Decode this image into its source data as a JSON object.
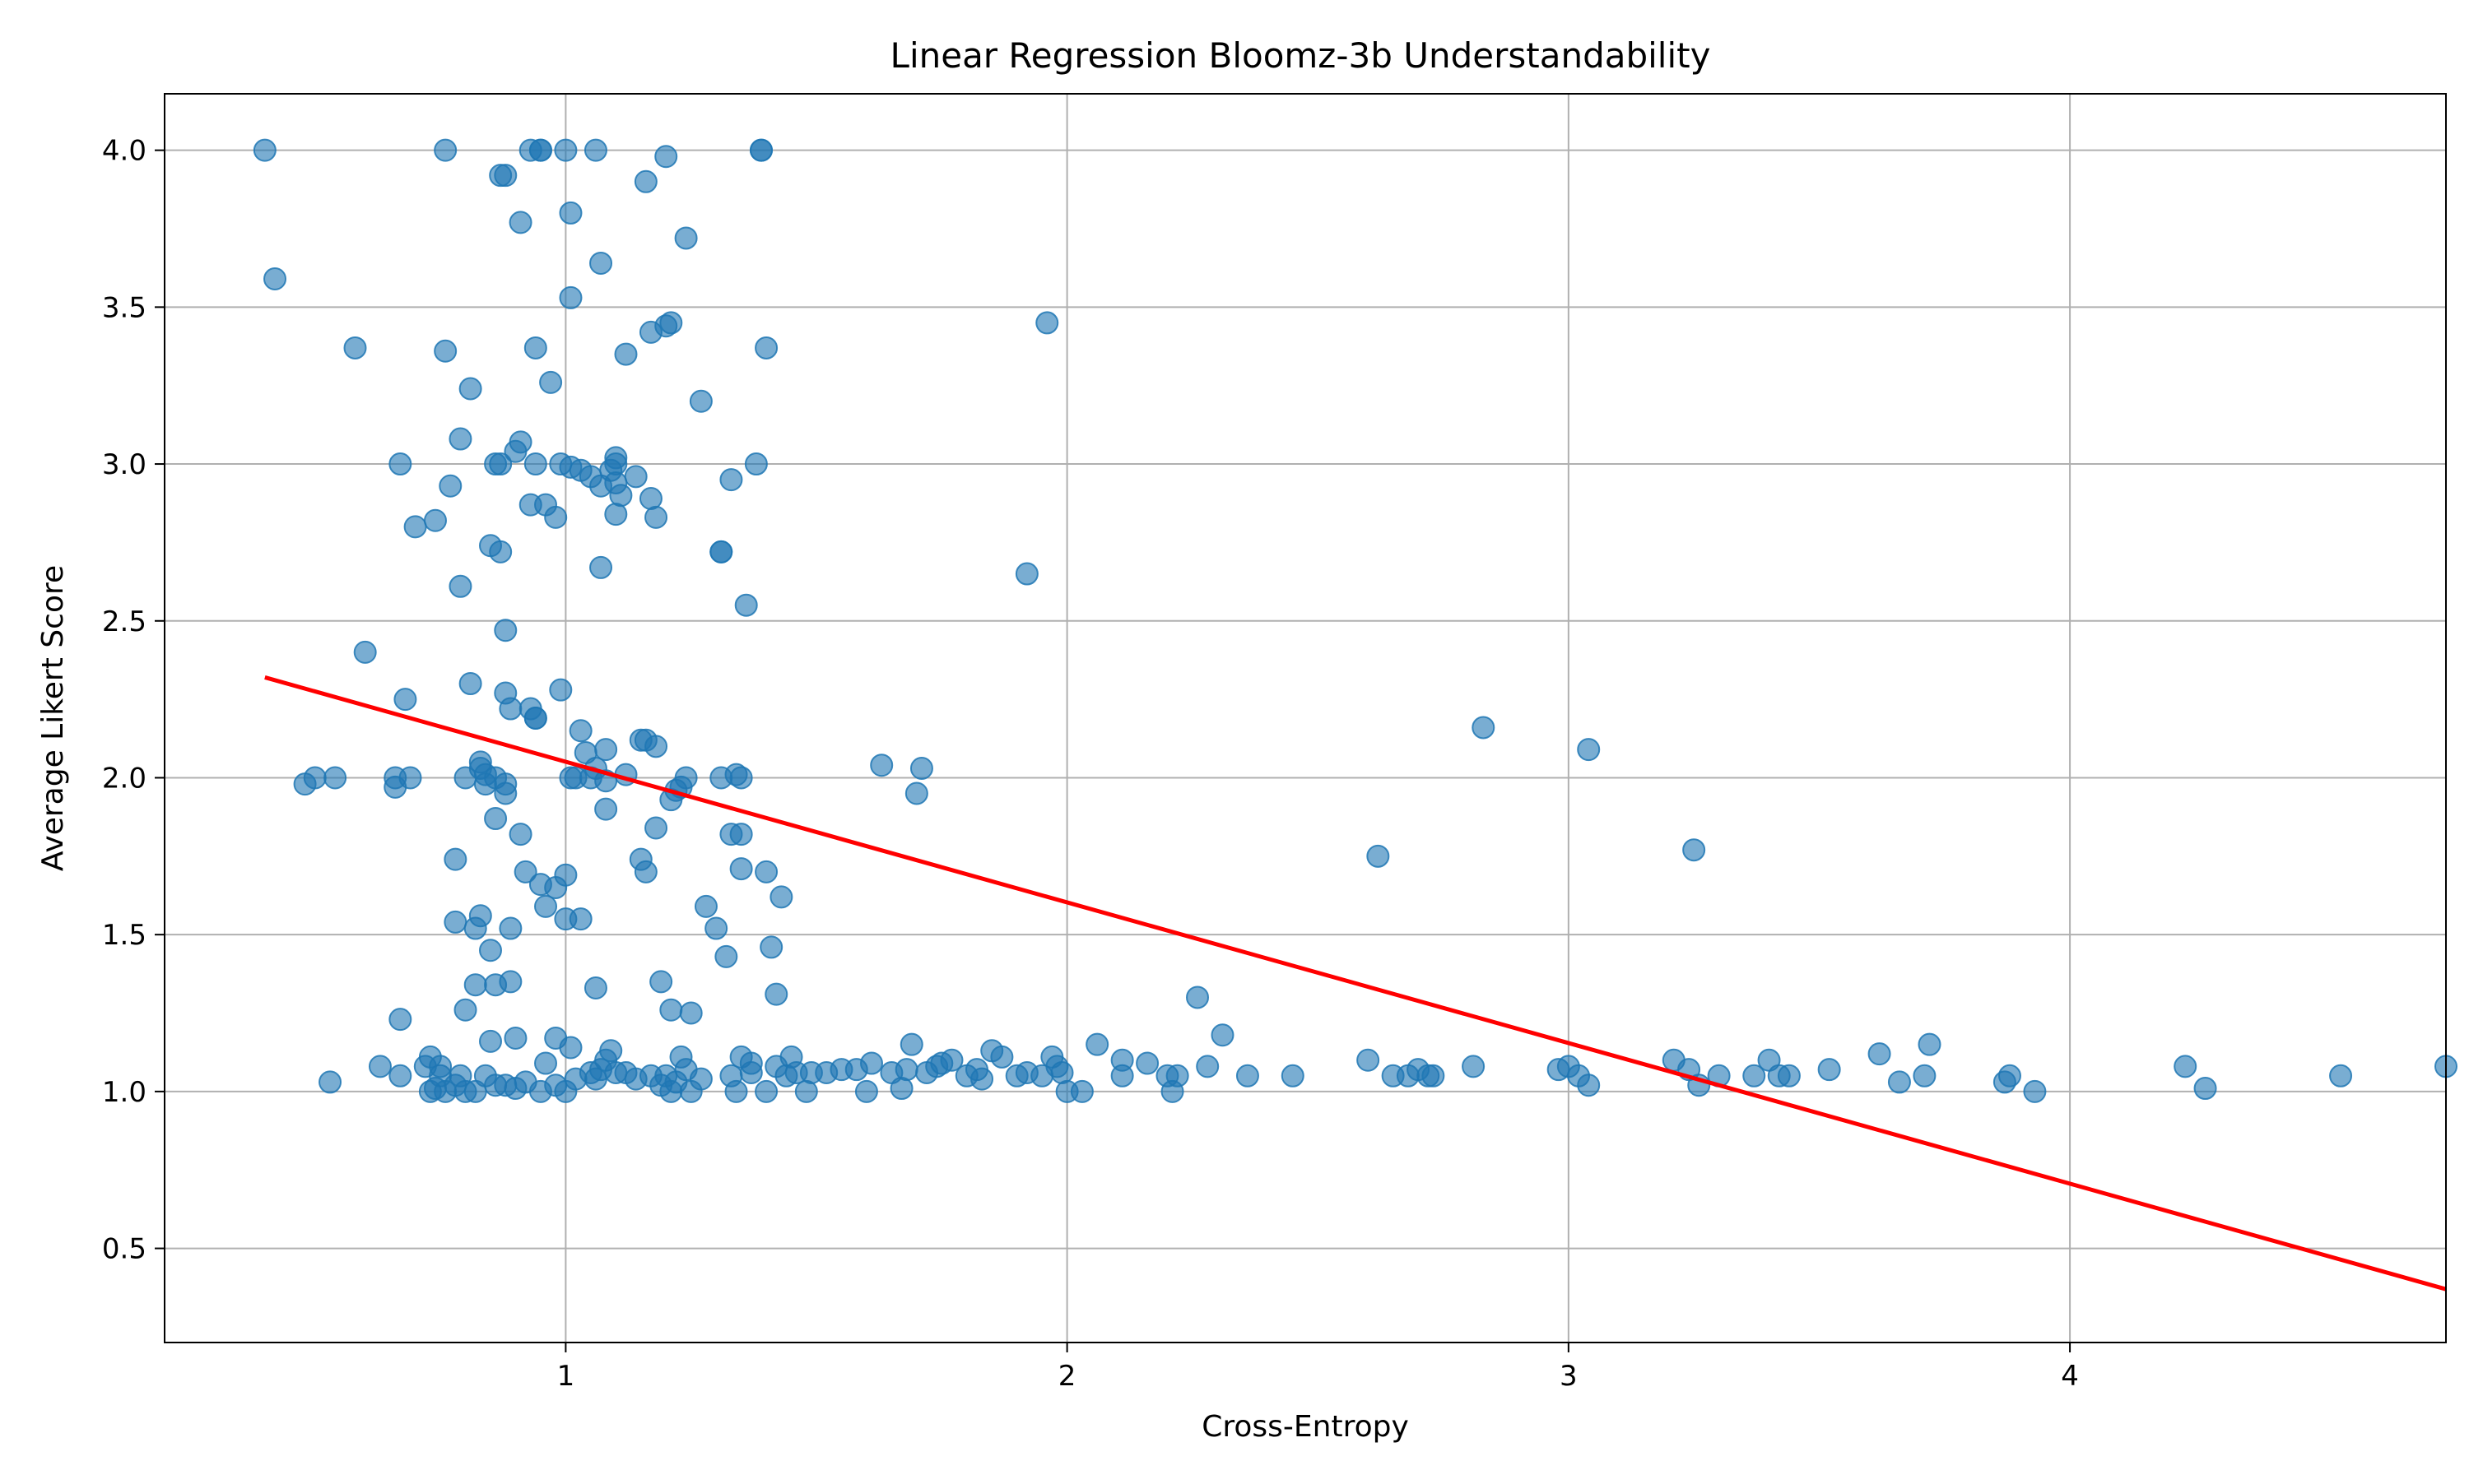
{
  "chart_data": {
    "type": "scatter",
    "title": "Linear Regression Bloomz-3b Understandability",
    "xlabel": "Cross-Entropy",
    "ylabel": "Average Likert Score",
    "xlim": [
      0.2,
      4.75
    ],
    "ylim": [
      0.2,
      4.18
    ],
    "x_ticks": [
      1,
      2,
      3,
      4
    ],
    "x_tick_labels": [
      "1",
      "2",
      "3",
      "4"
    ],
    "y_ticks": [
      0.5,
      1.0,
      1.5,
      2.0,
      2.5,
      3.0,
      3.5,
      4.0
    ],
    "y_tick_labels": [
      "0.5",
      "1.0",
      "1.5",
      "2.0",
      "2.5",
      "3.0",
      "3.5",
      "4.0"
    ],
    "grid": true,
    "colors": {
      "points": "#1f77b4",
      "regression_line": "#ff0000",
      "grid": "#b0b0b0"
    },
    "series": [
      {
        "kind": "scatter",
        "points": [
          [
            0.4,
            4.0
          ],
          [
            0.42,
            3.59
          ],
          [
            0.48,
            1.98
          ],
          [
            0.5,
            2.0
          ],
          [
            0.54,
            2.0
          ],
          [
            0.53,
            1.03
          ],
          [
            0.58,
            3.37
          ],
          [
            0.6,
            2.4
          ],
          [
            0.63,
            1.08
          ],
          [
            0.66,
            2.0
          ],
          [
            0.66,
            1.97
          ],
          [
            0.67,
            3.0
          ],
          [
            0.67,
            1.05
          ],
          [
            0.67,
            1.23
          ],
          [
            0.68,
            2.25
          ],
          [
            0.69,
            2.0
          ],
          [
            0.7,
            2.8
          ],
          [
            0.74,
            2.82
          ],
          [
            0.76,
            4.0
          ],
          [
            0.76,
            3.36
          ],
          [
            0.77,
            2.93
          ],
          [
            0.78,
            1.74
          ],
          [
            0.78,
            1.54
          ],
          [
            0.79,
            3.08
          ],
          [
            0.79,
            2.61
          ],
          [
            0.8,
            2.0
          ],
          [
            0.8,
            1.26
          ],
          [
            0.81,
            3.24
          ],
          [
            0.81,
            2.3
          ],
          [
            0.82,
            1.34
          ],
          [
            0.82,
            1.52
          ],
          [
            0.83,
            1.56
          ],
          [
            0.83,
            2.05
          ],
          [
            0.83,
            2.03
          ],
          [
            0.84,
            1.98
          ],
          [
            0.84,
            2.01
          ],
          [
            0.85,
            2.74
          ],
          [
            0.85,
            1.45
          ],
          [
            0.85,
            1.16
          ],
          [
            0.86,
            1.87
          ],
          [
            0.86,
            1.34
          ],
          [
            0.86,
            2.0
          ],
          [
            0.86,
            3.0
          ],
          [
            0.87,
            3.92
          ],
          [
            0.87,
            3.0
          ],
          [
            0.87,
            2.72
          ],
          [
            0.88,
            3.92
          ],
          [
            0.88,
            2.47
          ],
          [
            0.88,
            2.27
          ],
          [
            0.88,
            1.95
          ],
          [
            0.88,
            1.98
          ],
          [
            0.89,
            2.22
          ],
          [
            0.89,
            1.52
          ],
          [
            0.89,
            1.35
          ],
          [
            0.9,
            1.17
          ],
          [
            0.9,
            3.04
          ],
          [
            0.91,
            3.77
          ],
          [
            0.91,
            3.07
          ],
          [
            0.91,
            1.82
          ],
          [
            0.92,
            1.7
          ],
          [
            0.93,
            4.0
          ],
          [
            0.93,
            2.87
          ],
          [
            0.93,
            2.22
          ],
          [
            0.94,
            3.37
          ],
          [
            0.94,
            3.0
          ],
          [
            0.94,
            2.19
          ],
          [
            0.94,
            2.19
          ],
          [
            0.95,
            4.0
          ],
          [
            0.95,
            4.0
          ],
          [
            0.95,
            1.66
          ],
          [
            0.96,
            1.59
          ],
          [
            0.96,
            2.87
          ],
          [
            0.97,
            3.26
          ],
          [
            0.98,
            2.83
          ],
          [
            0.98,
            1.17
          ],
          [
            0.98,
            1.65
          ],
          [
            0.99,
            3.0
          ],
          [
            0.99,
            2.28
          ],
          [
            1.0,
            1.69
          ],
          [
            1.0,
            1.55
          ],
          [
            1.01,
            2.99
          ],
          [
            1.01,
            2.0
          ],
          [
            1.01,
            1.14
          ],
          [
            1.0,
            4.0
          ],
          [
            1.01,
            3.53
          ],
          [
            1.01,
            3.8
          ],
          [
            1.02,
            2.0
          ],
          [
            1.03,
            2.15
          ],
          [
            1.03,
            2.98
          ],
          [
            1.03,
            1.55
          ],
          [
            1.04,
            2.08
          ],
          [
            1.05,
            2.96
          ],
          [
            1.05,
            2.0
          ],
          [
            1.06,
            2.03
          ],
          [
            1.06,
            1.33
          ],
          [
            1.06,
            4.0
          ],
          [
            1.07,
            3.64
          ],
          [
            1.07,
            2.93
          ],
          [
            1.07,
            2.67
          ],
          [
            1.08,
            2.09
          ],
          [
            1.08,
            1.99
          ],
          [
            1.08,
            1.9
          ],
          [
            1.09,
            2.98
          ],
          [
            1.1,
            3.02
          ],
          [
            1.1,
            3.0
          ],
          [
            1.1,
            2.94
          ],
          [
            1.1,
            2.84
          ],
          [
            1.11,
            2.9
          ],
          [
            1.12,
            3.35
          ],
          [
            1.12,
            2.01
          ],
          [
            1.14,
            2.96
          ],
          [
            1.15,
            1.74
          ],
          [
            1.15,
            2.12
          ],
          [
            1.16,
            2.12
          ],
          [
            1.16,
            1.7
          ],
          [
            1.16,
            3.9
          ],
          [
            1.17,
            3.42
          ],
          [
            1.17,
            2.89
          ],
          [
            1.18,
            2.83
          ],
          [
            1.18,
            2.1
          ],
          [
            1.18,
            1.84
          ],
          [
            1.19,
            1.35
          ],
          [
            1.2,
            3.98
          ],
          [
            1.2,
            3.44
          ],
          [
            1.21,
            3.45
          ],
          [
            1.21,
            1.26
          ],
          [
            1.21,
            1.93
          ],
          [
            1.22,
            1.96
          ],
          [
            1.23,
            1.97
          ],
          [
            1.24,
            3.72
          ],
          [
            1.24,
            2.0
          ],
          [
            1.25,
            1.25
          ],
          [
            1.27,
            3.2
          ],
          [
            1.28,
            1.59
          ],
          [
            1.3,
            1.52
          ],
          [
            1.31,
            2.0
          ],
          [
            1.31,
            2.72
          ],
          [
            1.31,
            2.72
          ],
          [
            1.32,
            1.43
          ],
          [
            1.33,
            2.95
          ],
          [
            1.33,
            1.82
          ],
          [
            1.34,
            2.01
          ],
          [
            1.35,
            2.0
          ],
          [
            1.35,
            1.82
          ],
          [
            1.35,
            1.71
          ],
          [
            1.36,
            2.55
          ],
          [
            1.38,
            3.0
          ],
          [
            1.39,
            4.0
          ],
          [
            1.39,
            4.0
          ],
          [
            1.4,
            3.37
          ],
          [
            1.4,
            1.7
          ],
          [
            1.41,
            1.46
          ],
          [
            1.42,
            1.31
          ],
          [
            1.43,
            1.62
          ],
          [
            1.63,
            2.04
          ],
          [
            1.7,
            1.95
          ],
          [
            1.71,
            2.03
          ],
          [
            1.96,
            3.45
          ],
          [
            1.92,
            2.65
          ],
          [
            2.26,
            1.3
          ],
          [
            2.31,
            1.18
          ],
          [
            2.62,
            1.75
          ],
          [
            2.83,
            2.16
          ],
          [
            3.04,
            2.09
          ],
          [
            3.25,
            1.77
          ],
          [
            0.72,
            1.08
          ],
          [
            0.73,
            1.0
          ],
          [
            0.73,
            1.11
          ],
          [
            0.74,
            1.01
          ],
          [
            0.75,
            1.05
          ],
          [
            0.75,
            1.08
          ],
          [
            0.76,
            1.0
          ],
          [
            0.78,
            1.02
          ],
          [
            0.79,
            1.05
          ],
          [
            0.8,
            1.0
          ],
          [
            0.82,
            1.0
          ],
          [
            0.84,
            1.05
          ],
          [
            0.86,
            1.02
          ],
          [
            0.88,
            1.02
          ],
          [
            0.9,
            1.01
          ],
          [
            0.92,
            1.03
          ],
          [
            0.95,
            1.0
          ],
          [
            0.96,
            1.09
          ],
          [
            0.98,
            1.02
          ],
          [
            1.0,
            1.0
          ],
          [
            1.02,
            1.04
          ],
          [
            1.05,
            1.06
          ],
          [
            1.06,
            1.04
          ],
          [
            1.07,
            1.07
          ],
          [
            1.08,
            1.1
          ],
          [
            1.09,
            1.13
          ],
          [
            1.1,
            1.06
          ],
          [
            1.12,
            1.06
          ],
          [
            1.14,
            1.04
          ],
          [
            1.17,
            1.05
          ],
          [
            1.19,
            1.02
          ],
          [
            1.2,
            1.05
          ],
          [
            1.21,
            1.0
          ],
          [
            1.22,
            1.03
          ],
          [
            1.23,
            1.11
          ],
          [
            1.24,
            1.07
          ],
          [
            1.25,
            1.0
          ],
          [
            1.27,
            1.04
          ],
          [
            1.33,
            1.05
          ],
          [
            1.34,
            1.0
          ],
          [
            1.35,
            1.11
          ],
          [
            1.37,
            1.06
          ],
          [
            1.37,
            1.09
          ],
          [
            1.4,
            1.0
          ],
          [
            1.42,
            1.08
          ],
          [
            1.44,
            1.05
          ],
          [
            1.45,
            1.11
          ],
          [
            1.46,
            1.06
          ],
          [
            1.48,
            1.0
          ],
          [
            1.49,
            1.06
          ],
          [
            1.52,
            1.06
          ],
          [
            1.55,
            1.07
          ],
          [
            1.58,
            1.07
          ],
          [
            1.6,
            1.0
          ],
          [
            1.61,
            1.09
          ],
          [
            1.65,
            1.06
          ],
          [
            1.67,
            1.01
          ],
          [
            1.68,
            1.07
          ],
          [
            1.69,
            1.15
          ],
          [
            1.72,
            1.06
          ],
          [
            1.74,
            1.08
          ],
          [
            1.75,
            1.09
          ],
          [
            1.77,
            1.1
          ],
          [
            1.8,
            1.05
          ],
          [
            1.82,
            1.07
          ],
          [
            1.83,
            1.04
          ],
          [
            1.85,
            1.13
          ],
          [
            1.87,
            1.11
          ],
          [
            1.9,
            1.05
          ],
          [
            1.92,
            1.06
          ],
          [
            1.95,
            1.05
          ],
          [
            1.97,
            1.11
          ],
          [
            1.98,
            1.08
          ],
          [
            1.99,
            1.06
          ],
          [
            2.0,
            1.0
          ],
          [
            2.03,
            1.0
          ],
          [
            2.06,
            1.15
          ],
          [
            2.11,
            1.1
          ],
          [
            2.11,
            1.05
          ],
          [
            2.16,
            1.09
          ],
          [
            2.2,
            1.05
          ],
          [
            2.21,
            1.0
          ],
          [
            2.22,
            1.05
          ],
          [
            2.28,
            1.08
          ],
          [
            2.36,
            1.05
          ],
          [
            2.45,
            1.05
          ],
          [
            2.6,
            1.1
          ],
          [
            2.65,
            1.05
          ],
          [
            2.68,
            1.05
          ],
          [
            2.7,
            1.07
          ],
          [
            2.72,
            1.05
          ],
          [
            2.73,
            1.05
          ],
          [
            2.81,
            1.08
          ],
          [
            2.98,
            1.07
          ],
          [
            3.0,
            1.08
          ],
          [
            3.02,
            1.05
          ],
          [
            3.04,
            1.02
          ],
          [
            3.21,
            1.1
          ],
          [
            3.24,
            1.07
          ],
          [
            3.26,
            1.02
          ],
          [
            3.3,
            1.05
          ],
          [
            3.37,
            1.05
          ],
          [
            3.4,
            1.1
          ],
          [
            3.42,
            1.05
          ],
          [
            3.44,
            1.05
          ],
          [
            3.52,
            1.07
          ],
          [
            3.62,
            1.12
          ],
          [
            3.66,
            1.03
          ],
          [
            3.71,
            1.05
          ],
          [
            3.72,
            1.15
          ],
          [
            3.87,
            1.03
          ],
          [
            3.88,
            1.05
          ],
          [
            3.93,
            1.0
          ],
          [
            4.23,
            1.08
          ],
          [
            4.27,
            1.01
          ],
          [
            4.54,
            1.05
          ],
          [
            4.75,
            1.08
          ]
        ]
      },
      {
        "kind": "line",
        "points": [
          [
            0.4,
            2.32
          ],
          [
            4.75,
            0.37
          ]
        ]
      }
    ]
  }
}
